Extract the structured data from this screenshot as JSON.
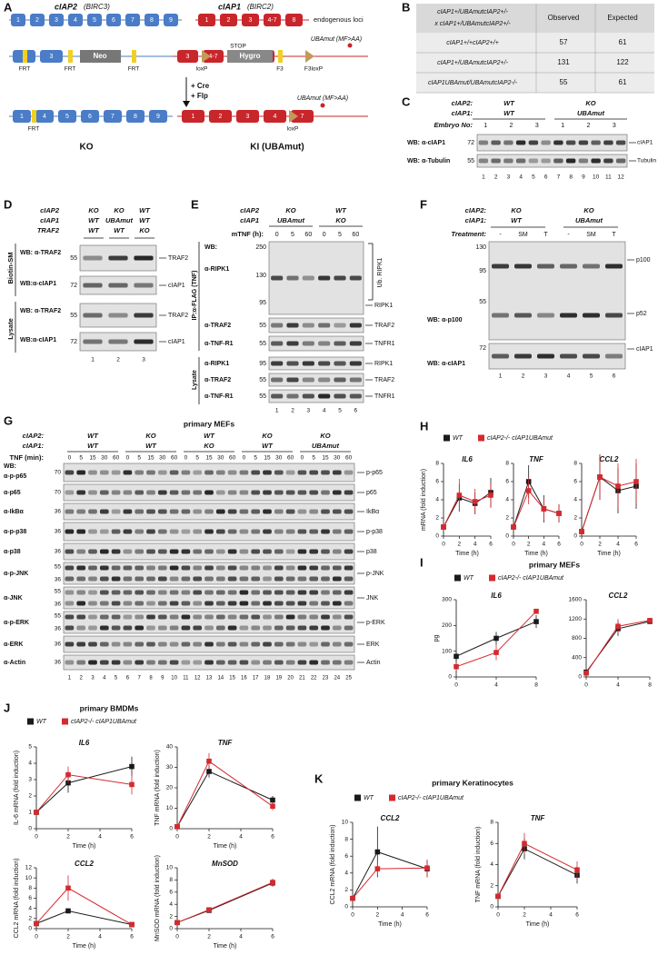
{
  "panels": {
    "A": {
      "label": "A",
      "gene2": "cIAP2",
      "gene2_alt": "(BIRC3)",
      "gene1": "cIAP1",
      "gene1_alt": "(BIRC2)",
      "loci": "endogenous loci",
      "row1_c2": [
        "1",
        "2",
        "3",
        "4",
        "5",
        "6",
        "7",
        "8",
        "9"
      ],
      "row1_c1": [
        "1",
        "2",
        "3",
        "4-7",
        "8"
      ],
      "row2_c2": [
        "2",
        "3"
      ],
      "frt": [
        "FRT",
        "FRT",
        "FRT"
      ],
      "neo": "Neo",
      "row2_c1": [
        "3",
        "4-7",
        "3",
        "7"
      ],
      "stop": "STOP",
      "hygro": "Hygro",
      "loxp": "loxP",
      "f3": "F3",
      "f3loxp": "F3loxP",
      "uba": "UBAmut (MF>AA)",
      "cre": "+ Cre",
      "flp": "+ Flp",
      "row3_c2": [
        "1",
        "4",
        "5",
        "6",
        "7",
        "8",
        "9"
      ],
      "frt3": "FRT",
      "row3_c1": [
        "1",
        "2",
        "3",
        "4",
        "7"
      ],
      "loxp3": "loxP",
      "uba3": "UBAmut (MF>AA)",
      "ko": "KO",
      "ki": "KI (UBAmut)"
    },
    "B": {
      "label": "B",
      "header": [
        "cIAP1+/UBAmutcIAP2+/-",
        "x cIAP1+/UBAmutcIAP2+/-",
        "Observed",
        "Expected"
      ],
      "rows": [
        [
          "cIAP1+/+cIAP2+/+",
          57,
          61
        ],
        [
          "cIAP1+/UBAmutcIAP2+/-",
          131,
          122
        ],
        [
          "cIAP1UBAmut/UBAmutcIAP2-/-",
          55,
          61
        ]
      ]
    },
    "C": {
      "label": "C",
      "row1": "cIAP2:",
      "row2": "cIAP1:",
      "groups": [
        [
          "WT",
          "WT"
        ],
        [
          "KO",
          "UBAmut"
        ]
      ],
      "embryo": "Embryo No:",
      "embryos": [
        "1",
        "2",
        "3",
        "1",
        "2",
        "3"
      ],
      "blots": [
        {
          "ab": "WB: α-cIAP1",
          "marker": 72,
          "protein": "cIAP1"
        },
        {
          "ab": "WB: α-Tubulin",
          "marker": 55,
          "protein": "Tubulin"
        }
      ],
      "lanes": [
        "1",
        "2",
        "3",
        "4",
        "5",
        "6",
        "7",
        "8",
        "9",
        "10",
        "11",
        "12"
      ]
    },
    "D": {
      "label": "D",
      "rows": [
        "cIAP2",
        "cIAP1",
        "TRAF2"
      ],
      "cols": [
        [
          "KO",
          "WT",
          "WT"
        ],
        [
          "KO",
          "UBAmut",
          "WT"
        ],
        [
          "WT",
          "WT",
          "KO"
        ]
      ],
      "sec1": "Biotin-SM",
      "sec2": "Lysate",
      "blots": [
        {
          "ab": "WB: α-TRAF2",
          "marker": 55,
          "protein": "TRAF2"
        },
        {
          "ab": "WB:α-cIAP1",
          "marker": 72,
          "protein": "cIAP1"
        },
        {
          "ab": "WB: α-TRAF2",
          "marker": 55,
          "protein": "TRAF2"
        },
        {
          "ab": "WB:α-cIAP1",
          "marker": 72,
          "protein": "cIAP1"
        }
      ],
      "lanes": [
        "1",
        "2",
        "3"
      ]
    },
    "E": {
      "label": "E",
      "rows": [
        "cIAP2",
        "cIAP1"
      ],
      "cols": [
        [
          "KO",
          "UBAmut"
        ],
        [
          "WT",
          "KO"
        ]
      ],
      "time": "mTNF (h):",
      "times": [
        "0",
        "5",
        "60",
        "0",
        "5",
        "60"
      ],
      "ip": "IP:α-FLAG (TNF)",
      "wb": "WB:",
      "ripk1_ab": "α-RIPK1",
      "ripk1_markers": [
        250,
        130,
        95
      ],
      "ub": "Ub. RIPK1",
      "ripk1": "RIPK1",
      "blots": [
        {
          "ab": "α-TRAF2",
          "marker": 55,
          "protein": "TRAF2"
        },
        {
          "ab": "α-TNF-R1",
          "marker": 55,
          "protein": "TNFR1"
        }
      ],
      "lysate": "Lysate",
      "lysate_blots": [
        {
          "ab": "α-RIPK1",
          "marker": 95,
          "protein": "RIPK1"
        },
        {
          "ab": "α-TRAF2",
          "marker": 55,
          "protein": "TRAF2"
        },
        {
          "ab": "α-TNF-R1",
          "marker": 55,
          "protein": "TNFR1"
        }
      ],
      "lanes": [
        "1",
        "2",
        "3",
        "4",
        "5",
        "6"
      ]
    },
    "F": {
      "label": "F",
      "row1": "cIAP2:",
      "row2": "cIAP1:",
      "cols": [
        [
          "KO",
          "WT"
        ],
        [
          "KO",
          "UBAmut"
        ]
      ],
      "treat": "Treatment:",
      "treatments": [
        "-",
        "SM",
        "T",
        "-",
        "SM",
        "T"
      ],
      "markers": [
        130,
        95,
        55
      ],
      "ab1": "WB: α-p100",
      "p100": "p100",
      "p52": "p52",
      "marker2": 72,
      "ab2": "WB: α-cIAP1",
      "ciap1": "cIAP1",
      "lanes": [
        "1",
        "2",
        "3",
        "4",
        "5",
        "6"
      ]
    },
    "G": {
      "label": "G",
      "title": "primary MEFs",
      "row1": "cIAP2:",
      "row2": "cIAP1:",
      "groups": [
        [
          "WT",
          "WT"
        ],
        [
          "KO",
          "WT"
        ],
        [
          "WT",
          "KO"
        ],
        [
          "KO",
          "WT"
        ],
        [
          "KO",
          "UBAmut"
        ]
      ],
      "time": "TNF (min):",
      "times": [
        "0",
        "5",
        "15",
        "30",
        "60",
        "0",
        "5",
        "15",
        "30",
        "60",
        "0",
        "5",
        "15",
        "30",
        "60",
        "0",
        "5",
        "15",
        "30",
        "60",
        "0",
        "5",
        "15",
        "30",
        "60"
      ],
      "wb": "WB:",
      "blots": [
        {
          "ab": "α-p-p65",
          "markers": [
            70
          ],
          "protein": "p-p65"
        },
        {
          "ab": "α-p65",
          "markers": [
            70
          ],
          "protein": "p65"
        },
        {
          "ab": "α-IkBα",
          "markers": [
            36
          ],
          "protein": "IkBα"
        },
        {
          "ab": "α-p-p38",
          "markers": [
            36
          ],
          "protein": "p-p38"
        },
        {
          "ab": "α-p38",
          "markers": [
            36
          ],
          "protein": "p38"
        },
        {
          "ab": "α-p-JNK",
          "markers": [
            55,
            36
          ],
          "protein": "p-JNK"
        },
        {
          "ab": "α-JNK",
          "markers": [
            55,
            36
          ],
          "protein": "JNK"
        },
        {
          "ab": "α-p-ERK",
          "markers": [
            55,
            36
          ],
          "protein": "p-ERK"
        },
        {
          "ab": "α-ERK",
          "markers": [
            36
          ],
          "protein": "ERK"
        },
        {
          "ab": "α-Actin",
          "markers": [
            36
          ],
          "protein": "Actin"
        }
      ],
      "lanes": [
        "1",
        "2",
        "3",
        "4",
        "5",
        "6",
        "7",
        "8",
        "9",
        "10",
        "11",
        "12",
        "13",
        "14",
        "15",
        "16",
        "17",
        "18",
        "19",
        "20",
        "21",
        "22",
        "23",
        "24",
        "25"
      ]
    },
    "H": {
      "label": "H"
    },
    "I": {
      "label": "I",
      "title": "primary MEFs"
    },
    "J": {
      "label": "J",
      "title": "primary BMDMs"
    },
    "K": {
      "label": "K",
      "title": "primary Keratinocytes"
    }
  },
  "chart_data": [
    {
      "type": "line",
      "title": "IL6",
      "ylabel": "mRNA (fold induction)",
      "xlabel": "Time (h)",
      "x": [
        0,
        2,
        4,
        6
      ],
      "xlim": [
        0,
        6
      ],
      "xticks": [
        0,
        2,
        4,
        6
      ],
      "ylim": [
        0,
        8
      ],
      "yticks": [
        0,
        2,
        4,
        6,
        8
      ],
      "series": [
        {
          "name": "WT",
          "color": "#1a1a1a",
          "values": [
            1,
            4.2,
            3.6,
            4.8
          ],
          "errors": [
            0.3,
            1.5,
            1.2,
            1.6
          ]
        },
        {
          "name": "cIAP2-/- cIAP1UBAmut",
          "color": "#d42a2f",
          "values": [
            1,
            4.5,
            3.8,
            4.5
          ],
          "errors": [
            0.3,
            1.8,
            1.4,
            1.4
          ]
        }
      ]
    },
    {
      "type": "line",
      "title": "TNF",
      "xlabel": "Time (h)",
      "x": [
        0,
        2,
        4,
        6
      ],
      "xlim": [
        0,
        6
      ],
      "xticks": [
        0,
        2,
        4,
        6
      ],
      "ylim": [
        0,
        8
      ],
      "yticks": [
        0,
        2,
        4,
        6,
        8
      ],
      "series": [
        {
          "name": "WT",
          "color": "#1a1a1a",
          "values": [
            1,
            6,
            3,
            2.5
          ],
          "errors": [
            0.3,
            1.8,
            1.5,
            1
          ]
        },
        {
          "name": "cIAP2-/- cIAP1UBAmut",
          "color": "#d42a2f",
          "values": [
            1,
            5,
            3,
            2.5
          ],
          "errors": [
            0.3,
            1.5,
            1.2,
            1
          ]
        }
      ]
    },
    {
      "type": "line",
      "title": "CCL2",
      "xlabel": "Time (h)",
      "x": [
        0,
        2,
        4,
        6
      ],
      "xlim": [
        0,
        6
      ],
      "xticks": [
        0,
        2,
        4,
        6
      ],
      "ylim": [
        0,
        8
      ],
      "yticks": [
        0,
        2,
        4,
        6,
        8
      ],
      "series": [
        {
          "name": "WT",
          "color": "#1a1a1a",
          "values": [
            0.5,
            6.5,
            5,
            5.5
          ],
          "errors": [
            0.3,
            2.5,
            2.5,
            2.5
          ]
        },
        {
          "name": "cIAP2-/- cIAP1UBAmut",
          "color": "#d42a2f",
          "values": [
            0.5,
            6.5,
            5.5,
            6
          ],
          "errors": [
            0.3,
            2.5,
            2.5,
            2.5
          ]
        }
      ]
    },
    {
      "type": "line",
      "title": "IL6",
      "ylabel": "pg",
      "x": [
        0,
        4,
        8
      ],
      "xlim": [
        0,
        8
      ],
      "xticks": [
        0,
        4,
        8
      ],
      "ylim": [
        0,
        300
      ],
      "yticks": [
        0,
        100,
        200,
        300
      ],
      "series": [
        {
          "name": "WT",
          "color": "#1a1a1a",
          "values": [
            80,
            150,
            215
          ],
          "errors": [
            15,
            25,
            25
          ]
        },
        {
          "name": "cIAP2-/- cIAP1UBAmut",
          "color": "#d42a2f",
          "values": [
            40,
            95,
            255
          ],
          "errors": [
            15,
            30,
            10
          ]
        }
      ]
    },
    {
      "type": "line",
      "title": "CCL2",
      "x": [
        0,
        4,
        8
      ],
      "xlim": [
        0,
        8
      ],
      "xticks": [
        0,
        4,
        8
      ],
      "ylim": [
        0,
        1600
      ],
      "yticks": [
        0,
        400,
        800,
        1200,
        1600
      ],
      "series": [
        {
          "name": "WT",
          "color": "#1a1a1a",
          "values": [
            100,
            1000,
            1150
          ],
          "errors": [
            30,
            150,
            40
          ]
        },
        {
          "name": "cIAP2-/- cIAP1UBAmut",
          "color": "#d42a2f",
          "values": [
            80,
            1050,
            1170
          ],
          "errors": [
            30,
            150,
            40
          ]
        }
      ]
    },
    {
      "type": "line",
      "title": "IL6",
      "ylabel": "IL-6 mRNA (fold induction)",
      "xlabel": "Time (h)",
      "x": [
        0,
        2,
        6
      ],
      "xlim": [
        0,
        6
      ],
      "xticks": [
        0,
        2,
        4,
        6
      ],
      "ylim": [
        0,
        5
      ],
      "yticks": [
        0,
        1,
        2,
        3,
        4,
        5
      ],
      "series": [
        {
          "name": "WT",
          "color": "#1a1a1a",
          "values": [
            1,
            2.8,
            3.8
          ],
          "errors": [
            0.1,
            0.6,
            0.6
          ]
        },
        {
          "name": "cIAP2-/- cIAP1UBAmut",
          "color": "#d42a2f",
          "values": [
            1,
            3.3,
            2.7
          ],
          "errors": [
            0.1,
            0.5,
            0.6
          ]
        }
      ]
    },
    {
      "type": "line",
      "title": "TNF",
      "ylabel": "TNF mRNA (fold induction)",
      "xlabel": "Time (h)",
      "x": [
        0,
        2,
        6
      ],
      "xlim": [
        0,
        6
      ],
      "xticks": [
        0,
        2,
        4,
        6
      ],
      "ylim": [
        0,
        40
      ],
      "yticks": [
        0,
        10,
        20,
        30,
        40
      ],
      "series": [
        {
          "name": "WT",
          "color": "#1a1a1a",
          "values": [
            1,
            28,
            14
          ],
          "errors": [
            0.5,
            3,
            2
          ]
        },
        {
          "name": "cIAP2-/- cIAP1UBAmut",
          "color": "#d42a2f",
          "values": [
            1,
            33,
            11
          ],
          "errors": [
            0.5,
            4,
            2
          ]
        }
      ]
    },
    {
      "type": "line",
      "title": "CCL2",
      "ylabel": "CCL2 mRNA (fold induction)",
      "xlabel": "Time (h)",
      "x": [
        0,
        2,
        6
      ],
      "xlim": [
        0,
        6
      ],
      "xticks": [
        0,
        2,
        4,
        6
      ],
      "ylim": [
        0,
        12
      ],
      "yticks": [
        0,
        2,
        4,
        6,
        8,
        10,
        12
      ],
      "series": [
        {
          "name": "WT",
          "color": "#1a1a1a",
          "values": [
            1,
            3.5,
            0.8
          ],
          "errors": [
            0.2,
            0.5,
            0.2
          ]
        },
        {
          "name": "cIAP2-/- cIAP1UBAmut",
          "color": "#d42a2f",
          "values": [
            1,
            8,
            0.8
          ],
          "errors": [
            0.2,
            2.5,
            0.2
          ]
        }
      ]
    },
    {
      "type": "line",
      "title": "MnSOD",
      "ylabel": "MnSOD mRNA (fold induction)",
      "xlabel": "Time (h)",
      "x": [
        0,
        2,
        6
      ],
      "xlim": [
        0,
        6
      ],
      "xticks": [
        0,
        2,
        4,
        6
      ],
      "ylim": [
        0,
        10
      ],
      "yticks": [
        0,
        2,
        4,
        6,
        8,
        10
      ],
      "series": [
        {
          "name": "WT",
          "color": "#1a1a1a",
          "values": [
            1,
            3,
            7.5
          ],
          "errors": [
            0.1,
            0.3,
            0.6
          ]
        },
        {
          "name": "cIAP2-/- cIAP1UBAmut",
          "color": "#d42a2f",
          "values": [
            1,
            3.1,
            7.6
          ],
          "errors": [
            0.1,
            0.3,
            0.6
          ]
        }
      ]
    },
    {
      "type": "line",
      "title": "CCL2",
      "ylabel": "CCL2 mRNA (fold induction)",
      "xlabel": "Time (h)",
      "x": [
        0,
        2,
        6
      ],
      "xlim": [
        0,
        6
      ],
      "xticks": [
        0,
        2,
        4,
        6
      ],
      "ylim": [
        0,
        10
      ],
      "yticks": [
        0,
        2,
        4,
        6,
        8,
        10
      ],
      "series": [
        {
          "name": "WT",
          "color": "#1a1a1a",
          "values": [
            1,
            6.5,
            4.5
          ],
          "errors": [
            0.3,
            3,
            1
          ]
        },
        {
          "name": "cIAP2-/- cIAP1UBAmut",
          "color": "#d42a2f",
          "values": [
            1,
            4.5,
            4.6
          ],
          "errors": [
            0.3,
            0.8,
            1
          ]
        }
      ]
    },
    {
      "type": "line",
      "title": "TNF",
      "ylabel": "TNF mRNA (fold induction)",
      "xlabel": "Time (h)",
      "x": [
        0,
        2,
        6
      ],
      "xlim": [
        0,
        6
      ],
      "xticks": [
        0,
        2,
        4,
        6
      ],
      "ylim": [
        0,
        8
      ],
      "yticks": [
        0,
        2,
        4,
        6,
        8
      ],
      "series": [
        {
          "name": "WT",
          "color": "#1a1a1a",
          "values": [
            1,
            5.5,
            3
          ],
          "errors": [
            0.2,
            1,
            0.8
          ]
        },
        {
          "name": "cIAP2-/- cIAP1UBAmut",
          "color": "#d42a2f",
          "values": [
            1,
            6,
            3.5
          ],
          "errors": [
            0.2,
            1,
            0.8
          ]
        }
      ]
    }
  ]
}
